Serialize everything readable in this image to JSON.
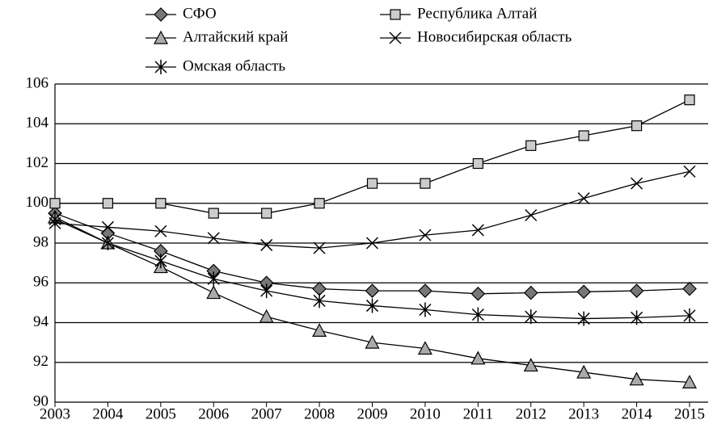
{
  "chart_data": {
    "type": "line",
    "categories": [
      "2003",
      "2004",
      "2005",
      "2006",
      "2007",
      "2008",
      "2009",
      "2010",
      "2011",
      "2012",
      "2013",
      "2014",
      "2015"
    ],
    "series": [
      {
        "name": "СФО",
        "color": "#777777",
        "marker": "diamond",
        "values": [
          99.5,
          98.5,
          97.6,
          96.6,
          96.0,
          95.7,
          95.6,
          95.6,
          95.45,
          95.5,
          95.55,
          95.6,
          95.7
        ]
      },
      {
        "name": "Республика Алтай",
        "color": "#cccccc",
        "marker": "square",
        "values": [
          100,
          100,
          100,
          99.5,
          99.5,
          100,
          101,
          101,
          102,
          102.9,
          103.4,
          103.9,
          105.2
        ]
      },
      {
        "name": "Алтайский край",
        "color": "#aaaaaa",
        "marker": "triangle",
        "values": [
          99.3,
          98.0,
          96.8,
          95.5,
          94.3,
          93.6,
          93.0,
          92.7,
          92.2,
          91.85,
          91.5,
          91.15,
          91.0
        ]
      },
      {
        "name": "Новосибирская область",
        "color": "#000000",
        "marker": "x",
        "values": [
          99.0,
          98.8,
          98.6,
          98.25,
          97.9,
          97.75,
          98.0,
          98.4,
          98.65,
          99.4,
          100.25,
          101.0,
          101.6
        ]
      },
      {
        "name": "Омская область",
        "color": "#000000",
        "marker": "star",
        "values": [
          99.2,
          98.0,
          97.1,
          96.2,
          95.6,
          95.1,
          94.85,
          94.65,
          94.4,
          94.3,
          94.2,
          94.25,
          94.35
        ]
      }
    ],
    "ylim": [
      90,
      106
    ],
    "yticks": [
      90,
      92,
      94,
      96,
      98,
      100,
      102,
      104,
      106
    ],
    "grid": true
  }
}
